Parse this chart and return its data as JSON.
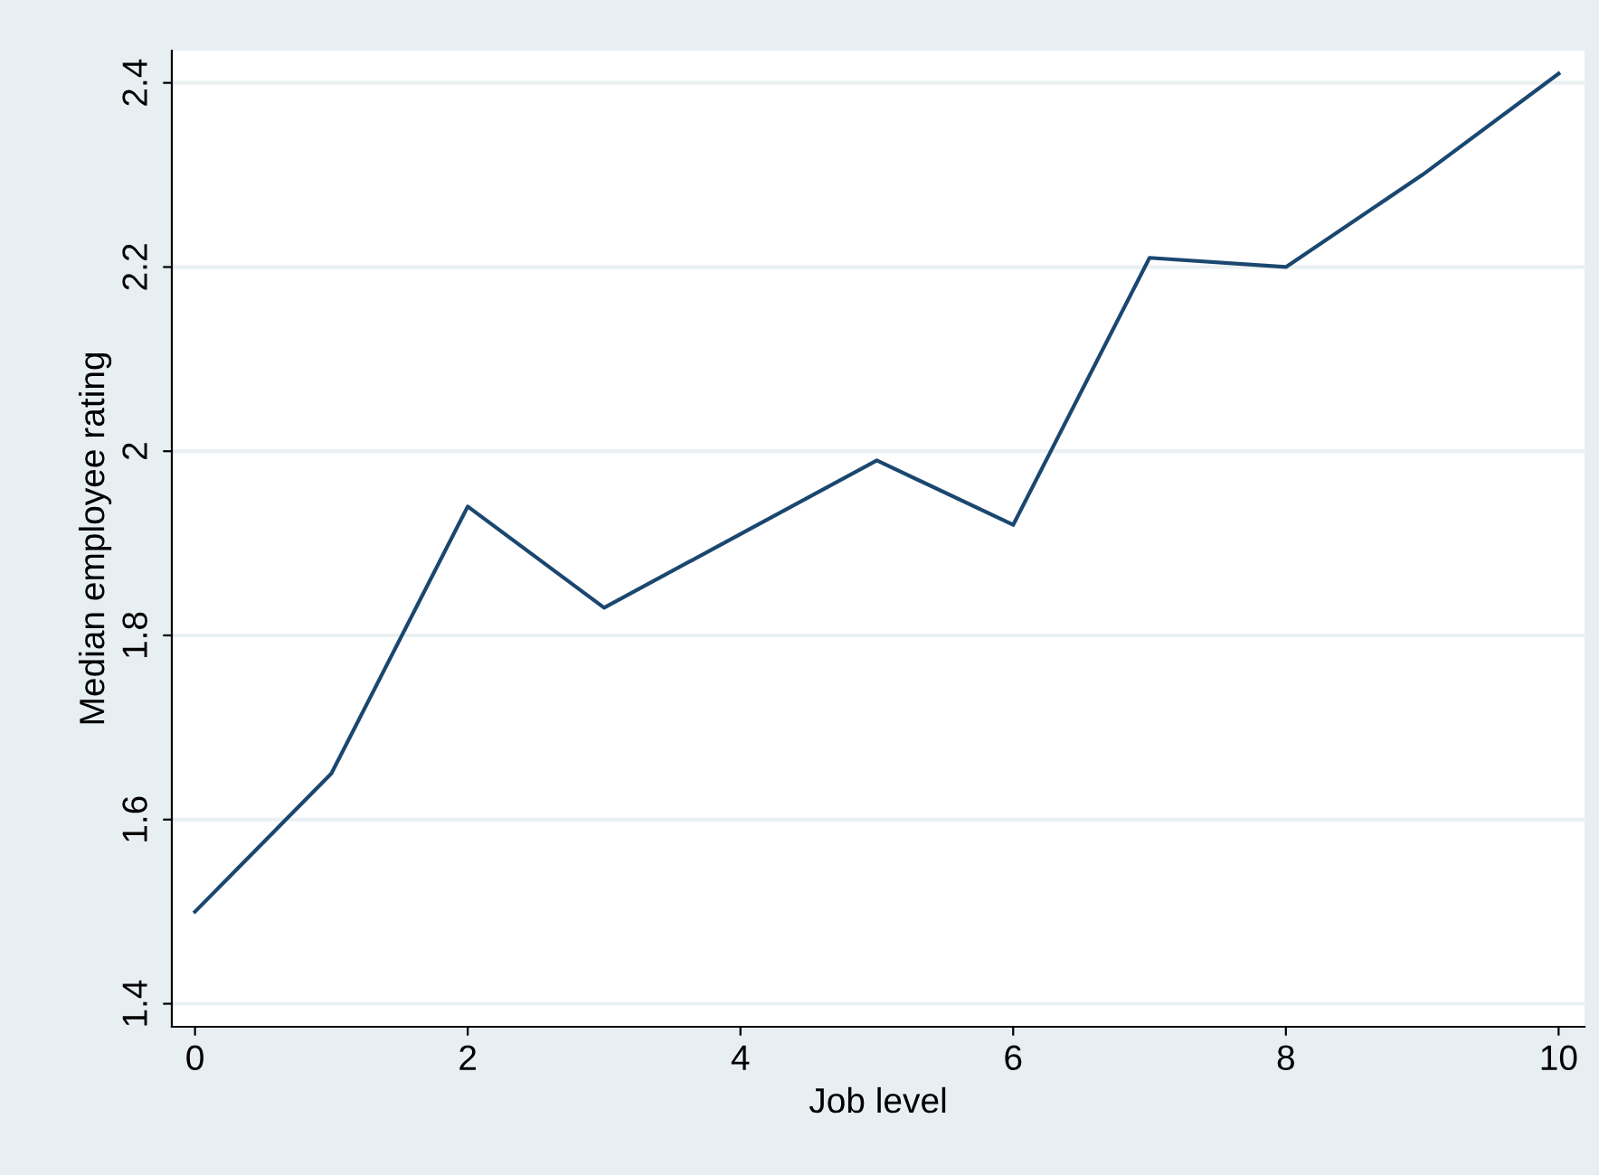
{
  "chart_data": {
    "type": "line",
    "xlabel": "Job level",
    "ylabel": "Median employee rating",
    "x": [
      0,
      1,
      2,
      3,
      4,
      5,
      6,
      7,
      8,
      9,
      10
    ],
    "series": [
      {
        "color": "#1a476f",
        "values": [
          1.5,
          1.65,
          1.94,
          1.83,
          1.91,
          1.99,
          1.92,
          2.21,
          2.2,
          2.3,
          2.41
        ]
      }
    ],
    "xlim": [
      -0.17,
      10.19
    ],
    "xticks": [
      0,
      2,
      4,
      6,
      8,
      10
    ],
    "ylim": [
      1.375,
      2.435
    ],
    "yticks": [
      {
        "value": 1.4,
        "label": "1.4"
      },
      {
        "value": 1.6,
        "label": "1.6"
      },
      {
        "value": 1.8,
        "label": "1.8"
      },
      {
        "value": 2.0,
        "label": "2"
      },
      {
        "value": 2.2,
        "label": "2.2"
      },
      {
        "value": 2.4,
        "label": "2.4"
      }
    ],
    "grid": "y",
    "legend": false,
    "marker": "none",
    "line_style": "solid"
  }
}
